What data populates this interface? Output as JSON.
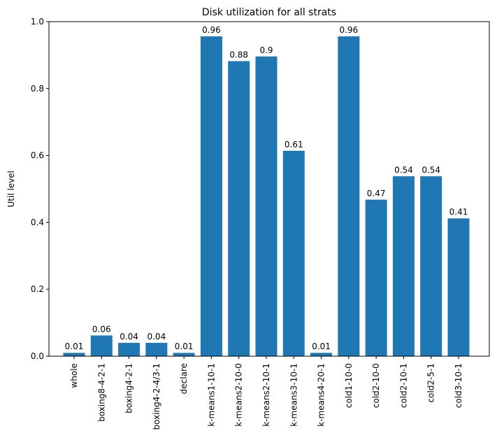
{
  "chart_data": {
    "type": "bar",
    "title": "Disk utilization for all strats",
    "xlabel": "",
    "ylabel": "Util level",
    "ylim": [
      0,
      1.0
    ],
    "yticks": [
      "0.0",
      "0.2",
      "0.4",
      "0.6",
      "0.8",
      "1.0"
    ],
    "categories": [
      "whole",
      "boxing8-4-2-1",
      "boxing4-2-1",
      "boxing4-2-4/3-1",
      "declare",
      "k-means1-10-1",
      "k-means2-10-0",
      "k-means2-10-1",
      "k-means3-10-1",
      "k-means4-20-1",
      "cold1-10-0",
      "cold2-10-0",
      "cold2-10-1",
      "cold2-5-1",
      "cold3-10-1"
    ],
    "values": [
      0.01,
      0.062,
      0.04,
      0.04,
      0.01,
      0.956,
      0.882,
      0.896,
      0.614,
      0.01,
      0.956,
      0.468,
      0.538,
      0.538,
      0.412
    ],
    "data_labels": [
      "0.01",
      "0.06",
      "0.04",
      "0.04",
      "0.01",
      "0.96",
      "0.88",
      "0.9",
      "0.61",
      "0.01",
      "0.96",
      "0.47",
      "0.54",
      "0.54",
      "0.41"
    ],
    "color": "#1f77b4",
    "grid": false,
    "legend": "none"
  }
}
